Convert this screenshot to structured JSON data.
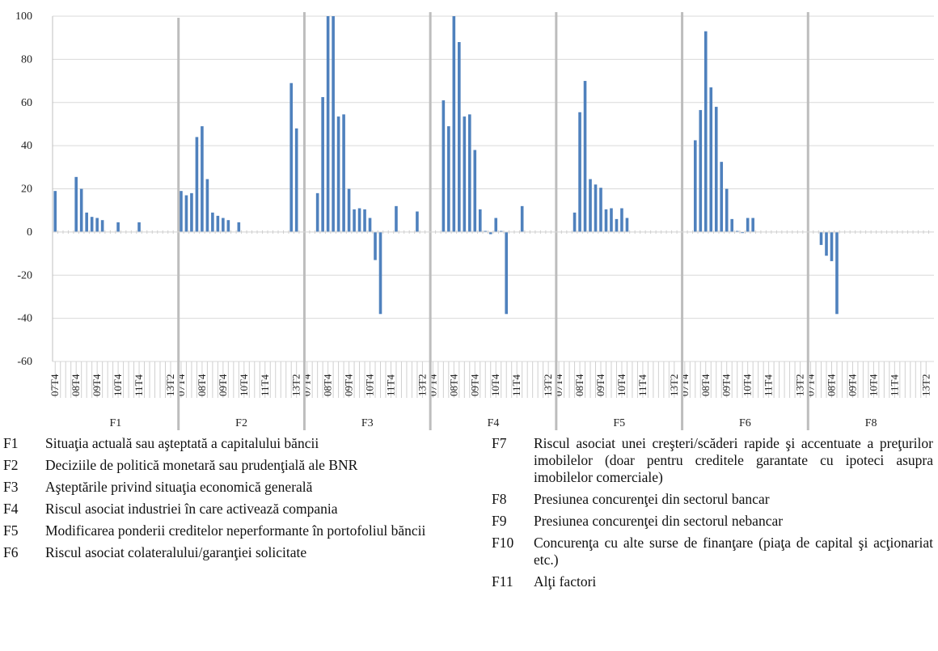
{
  "chart_data": {
    "type": "bar",
    "color": "#4f81bd",
    "grid": true,
    "ylim": [
      -60,
      100
    ],
    "yticks": [
      -60,
      -40,
      -20,
      0,
      20,
      40,
      60,
      80,
      100
    ],
    "groups": [
      {
        "name": "F1",
        "categories": [
          "07T4",
          null,
          null,
          null,
          "08T4",
          null,
          null,
          null,
          "09T4",
          null,
          null,
          null,
          "10T4",
          null,
          null,
          null,
          "11T4",
          null,
          null,
          null,
          null,
          null,
          "13T2"
        ],
        "values": [
          19,
          0,
          0,
          0,
          25.5,
          20,
          9,
          7,
          6.5,
          5.5,
          0,
          0,
          4.5,
          0,
          0,
          0,
          4.5,
          0,
          0,
          0,
          0,
          0,
          0
        ]
      },
      {
        "name": "F2",
        "categories": [
          "07T4",
          null,
          null,
          null,
          "08T4",
          null,
          null,
          null,
          "09T4",
          null,
          null,
          null,
          "10T4",
          null,
          null,
          null,
          "11T4",
          null,
          null,
          null,
          null,
          null,
          "13T2"
        ],
        "values": [
          19,
          17,
          18,
          44,
          49,
          24.5,
          9,
          7.5,
          6.5,
          5.5,
          0,
          4.5,
          0,
          0,
          0,
          0,
          0,
          0,
          0,
          0,
          0,
          69,
          48
        ]
      },
      {
        "name": "F3",
        "categories": [
          "07T4",
          null,
          null,
          null,
          "08T4",
          null,
          null,
          null,
          "09T4",
          null,
          null,
          null,
          "10T4",
          null,
          null,
          null,
          "11T4",
          null,
          null,
          null,
          null,
          null,
          "13T2"
        ],
        "values": [
          0,
          0,
          18,
          62.5,
          100,
          100,
          53.5,
          54.5,
          20,
          10.5,
          11,
          10.5,
          6.5,
          -13,
          -38,
          0,
          0,
          12,
          0,
          0,
          0,
          9.5,
          0
        ]
      },
      {
        "name": "F4",
        "categories": [
          "07T4",
          null,
          null,
          null,
          "08T4",
          null,
          null,
          null,
          "09T4",
          null,
          null,
          null,
          "10T4",
          null,
          null,
          null,
          "11T4",
          null,
          null,
          null,
          null,
          null,
          "13T2"
        ],
        "values": [
          0,
          0,
          61,
          49,
          100,
          88,
          53.5,
          54.5,
          38,
          10.5,
          0.5,
          -1,
          6.5,
          0.5,
          -38,
          0,
          0,
          12,
          0,
          0,
          0,
          0,
          0
        ]
      },
      {
        "name": "F5",
        "categories": [
          "07T4",
          null,
          null,
          null,
          "08T4",
          null,
          null,
          null,
          "09T4",
          null,
          null,
          null,
          "10T4",
          null,
          null,
          null,
          "11T4",
          null,
          null,
          null,
          null,
          null,
          "13T2"
        ],
        "values": [
          0,
          0,
          0,
          9,
          55.5,
          70,
          24.5,
          22,
          20.5,
          10.5,
          11,
          6,
          11,
          6.5,
          0,
          0,
          0,
          0,
          0,
          0,
          0,
          0,
          0
        ]
      },
      {
        "name": "F6",
        "categories": [
          "07T4",
          null,
          null,
          null,
          "08T4",
          null,
          null,
          null,
          "09T4",
          null,
          null,
          null,
          "10T4",
          null,
          null,
          null,
          "11T4",
          null,
          null,
          null,
          null,
          null,
          "13T2"
        ],
        "values": [
          0,
          0,
          42.5,
          56.5,
          93,
          67,
          58,
          32.5,
          20,
          6,
          0.5,
          -0.5,
          6.5,
          6.5,
          0,
          0,
          0,
          0,
          0,
          0,
          0,
          0,
          0
        ]
      },
      {
        "name": "F8",
        "categories": [
          "07T4",
          null,
          null,
          null,
          "08T4",
          null,
          null,
          null,
          "09T4",
          null,
          null,
          null,
          "10T4",
          null,
          null,
          null,
          "11T4",
          null,
          null,
          null,
          null,
          null,
          "13T2"
        ],
        "values": [
          0,
          0,
          -6,
          -11,
          -13.5,
          -38,
          0,
          0,
          0,
          0,
          0,
          0,
          0,
          0,
          0,
          0,
          0,
          0,
          0,
          0,
          0,
          0,
          0
        ]
      }
    ]
  },
  "legend": {
    "left": [
      {
        "code": "F1",
        "text": "Situaţia actuală sau aşteptată a capitalului băncii"
      },
      {
        "code": "F2",
        "text": "Deciziile de politică monetară sau prudenţială ale BNR"
      },
      {
        "code": "F3",
        "text": "Aşteptările privind situaţia economică generală"
      },
      {
        "code": "F4",
        "text": "Riscul asociat industriei în care activează compania"
      },
      {
        "code": "F5",
        "text": "Modificarea ponderii creditelor neperformante în portofoliul băncii"
      },
      {
        "code": "F6",
        "text": "Riscul asociat colateralului/garanţiei solicitate"
      }
    ],
    "right": [
      {
        "code": "F7",
        "text": "Riscul asociat unei creşteri/scăderi rapide şi accentuate a preţurilor imobilelor (doar pentru creditele garantate cu ipoteci asupra imobilelor comerciale)"
      },
      {
        "code": "F8",
        "text": "Presiunea concurenţei din sectorul bancar"
      },
      {
        "code": "F9",
        "text": "Presiunea concurenţei din sectorul nebancar"
      },
      {
        "code": "F10",
        "text": "Concurenţa cu alte surse de finanţare (piaţa de capital şi acţionariat etc.)"
      },
      {
        "code": "F11",
        "text": "Alţi factori"
      }
    ]
  }
}
